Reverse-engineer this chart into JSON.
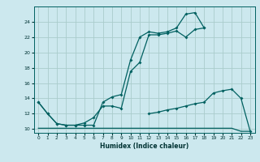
{
  "xlabel": "Humidex (Indice chaleur)",
  "bg_color": "#cce8ee",
  "grid_color": "#aacccc",
  "line_color": "#006060",
  "xlim": [
    -0.5,
    23.5
  ],
  "ylim": [
    9.5,
    26.0
  ],
  "xticks": [
    0,
    1,
    2,
    3,
    4,
    5,
    6,
    7,
    8,
    9,
    10,
    11,
    12,
    13,
    14,
    15,
    16,
    17,
    18,
    19,
    20,
    21,
    22,
    23
  ],
  "yticks": [
    10,
    12,
    14,
    16,
    18,
    20,
    22,
    24
  ],
  "series1_x": [
    0,
    1,
    2,
    3,
    4,
    5,
    6,
    7,
    8,
    9,
    10,
    11,
    12,
    13,
    14,
    15,
    16,
    17,
    18
  ],
  "series1_y": [
    13.5,
    12.0,
    10.7,
    10.5,
    10.5,
    10.5,
    10.5,
    13.5,
    14.2,
    14.5,
    19.0,
    22.0,
    22.7,
    22.5,
    22.7,
    23.2,
    25.0,
    25.2,
    23.2
  ],
  "series2_x": [
    0,
    1,
    2,
    3,
    4,
    5,
    6,
    7,
    8,
    9,
    10,
    11,
    12,
    13,
    14,
    15,
    16,
    17,
    18
  ],
  "series2_y": [
    13.5,
    12.0,
    10.7,
    10.5,
    10.5,
    10.8,
    11.5,
    13.0,
    13.0,
    12.7,
    17.5,
    18.7,
    22.3,
    22.3,
    22.5,
    22.8,
    22.0,
    23.0,
    23.2
  ],
  "series3_x": [
    0,
    1,
    2,
    3,
    4,
    5,
    6,
    7,
    8,
    9,
    10,
    11,
    12,
    13,
    14,
    15,
    16,
    17,
    18,
    19,
    20,
    21,
    22,
    23
  ],
  "series3_y": [
    10.1,
    10.1,
    10.1,
    10.1,
    10.1,
    10.1,
    10.1,
    10.1,
    10.1,
    10.1,
    10.1,
    10.1,
    10.1,
    10.1,
    10.1,
    10.1,
    10.1,
    10.1,
    10.1,
    10.1,
    10.1,
    10.1,
    9.7,
    9.7
  ],
  "series4_x": [
    12,
    13,
    14,
    15,
    16,
    17,
    18,
    19,
    20,
    21,
    22,
    23
  ],
  "series4_y": [
    12.0,
    12.2,
    12.5,
    12.7,
    13.0,
    13.3,
    13.5,
    14.7,
    15.0,
    15.2,
    14.0,
    9.7
  ]
}
